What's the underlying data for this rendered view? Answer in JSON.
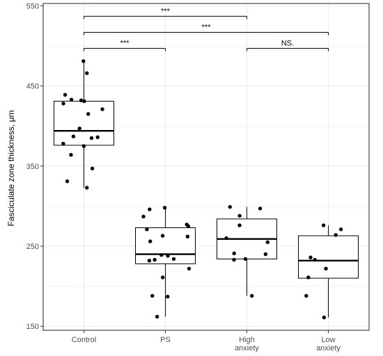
{
  "chart_data": {
    "type": "boxplot",
    "xlabel": "",
    "ylabel": "Fasciculate zone thickness, μm",
    "ylim": [
      145,
      553
    ],
    "yticks": [
      150,
      250,
      350,
      450,
      550
    ],
    "grid": true,
    "categories": [
      "Control",
      "PS",
      "High\nanxiety",
      "Low\nanxiety"
    ],
    "category_lines": [
      [
        "Control"
      ],
      [
        "PS"
      ],
      [
        "High",
        "anxiety"
      ],
      [
        "Low",
        "anxiety"
      ]
    ],
    "boxes": [
      {
        "category": "Control",
        "q1": 376,
        "median": 394,
        "q3": 431,
        "whisker_low": 323,
        "whisker_high": 481
      },
      {
        "category": "PS",
        "q1": 228,
        "median": 240,
        "q3": 273,
        "whisker_low": 162,
        "whisker_high": 298
      },
      {
        "category": "High anxiety",
        "q1": 234,
        "median": 259,
        "q3": 284,
        "whisker_low": 188,
        "whisker_high": 299
      },
      {
        "category": "Low anxiety",
        "q1": 210,
        "median": 232,
        "q3": 263,
        "whisker_low": 161,
        "whisker_high": 276
      }
    ],
    "points": [
      {
        "category": "Control",
        "values": [
          481,
          466,
          439,
          433,
          432,
          431,
          428,
          421,
          415,
          397,
          387,
          386,
          385,
          378,
          375,
          364,
          347,
          331,
          323
        ]
      },
      {
        "category": "PS",
        "values": [
          298,
          296,
          287,
          277,
          275,
          271,
          263,
          262,
          256,
          239,
          238,
          234,
          233,
          232,
          222,
          211,
          188,
          187,
          162
        ]
      },
      {
        "category": "High anxiety",
        "values": [
          299,
          297,
          288,
          276,
          260,
          255,
          241,
          240,
          234,
          233,
          188
        ]
      },
      {
        "category": "Low anxiety",
        "values": [
          276,
          271,
          264,
          236,
          233,
          222,
          211,
          188,
          161
        ]
      }
    ],
    "significance": [
      {
        "from": "Control",
        "to": "High anxiety",
        "label": "***",
        "y": 537
      },
      {
        "from": "Control",
        "to": "Low anxiety",
        "label": "***",
        "y": 517
      },
      {
        "from": "Control",
        "to": "PS",
        "label": "***",
        "y": 497
      },
      {
        "from": "High anxiety",
        "to": "Low anxiety",
        "label": "NS.",
        "y": 497
      }
    ],
    "colors": {
      "grid": "#ebebeb",
      "axis": "#333333",
      "box": "#000000",
      "points": "#000000"
    }
  }
}
